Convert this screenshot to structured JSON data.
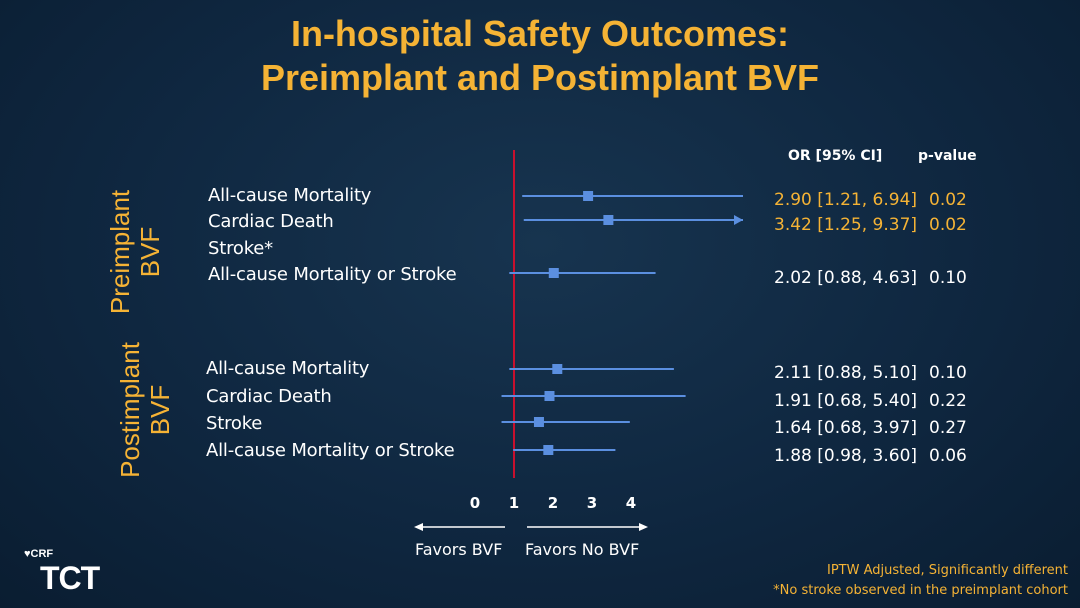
{
  "title": {
    "line1": "In-hospital Safety Outcomes:",
    "line2": "Preimplant and Postimplant BVF"
  },
  "headers": {
    "or_ci": "OR [95% CI]",
    "p_value": "p-value"
  },
  "groups": [
    {
      "label_line1": "Preimplant",
      "label_line2": "BVF",
      "rows": [
        {
          "label": "All-cause Mortality",
          "or_text": "2.90 [1.21, 6.94]",
          "p": "0.02",
          "significant": true
        },
        {
          "label": "Cardiac Death",
          "or_text": "3.42 [1.25, 9.37]",
          "p": "0.02",
          "significant": true
        },
        {
          "label": "Stroke*",
          "or_text": "",
          "p": "",
          "significant": false
        },
        {
          "label": "All-cause Mortality or Stroke",
          "or_text": "2.02 [0.88, 4.63]",
          "p": "0.10",
          "significant": false
        }
      ]
    },
    {
      "label_line1": "Postimplant",
      "label_line2": "BVF",
      "rows": [
        {
          "label": "All-cause Mortality",
          "or_text": "2.11 [0.88, 5.10]",
          "p": "0.10",
          "significant": false
        },
        {
          "label": "Cardiac Death",
          "or_text": "1.91 [0.68, 5.40]",
          "p": "0.22",
          "significant": false
        },
        {
          "label": "Stroke",
          "or_text": "1.64 [0.68, 3.97]",
          "p": "0.27",
          "significant": false
        },
        {
          "label": "All-cause Mortality or Stroke",
          "or_text": "1.88 [0.98, 3.60]",
          "p": "0.06",
          "significant": false
        }
      ]
    }
  ],
  "favors": {
    "left": "Favors BVF",
    "right": "Favors No BVF"
  },
  "footnotes": {
    "line1": "IPTW Adjusted, Significantly different",
    "line2": "*No stroke observed in the preimplant cohort"
  },
  "logo": {
    "crf": "CRF",
    "tct": "TCT"
  },
  "colors": {
    "accent": "#f5b335",
    "ci_line": "#5b8fe0",
    "reference_line": "#c8102e",
    "background": "#0f2740"
  },
  "chart_data": {
    "type": "scatter",
    "subtype": "forest-plot",
    "xlim": [
      0,
      4.6
    ],
    "x_ticks": [
      0,
      1,
      2,
      3,
      4
    ],
    "reference_value": 1,
    "series": [
      {
        "or": 2.9,
        "lo": 1.21,
        "hi": 6.94,
        "arrow": false
      },
      {
        "or": 3.42,
        "lo": 1.25,
        "hi": 9.37,
        "arrow": true
      },
      null,
      {
        "or": 2.02,
        "lo": 0.88,
        "hi": 4.63,
        "arrow": false
      },
      {
        "or": 2.11,
        "lo": 0.88,
        "hi": 5.1,
        "arrow": false
      },
      {
        "or": 1.91,
        "lo": 0.68,
        "hi": 5.4,
        "arrow": false
      },
      {
        "or": 1.64,
        "lo": 0.68,
        "hi": 3.97,
        "arrow": false
      },
      {
        "or": 1.88,
        "lo": 0.98,
        "hi": 3.6,
        "arrow": false
      }
    ]
  }
}
